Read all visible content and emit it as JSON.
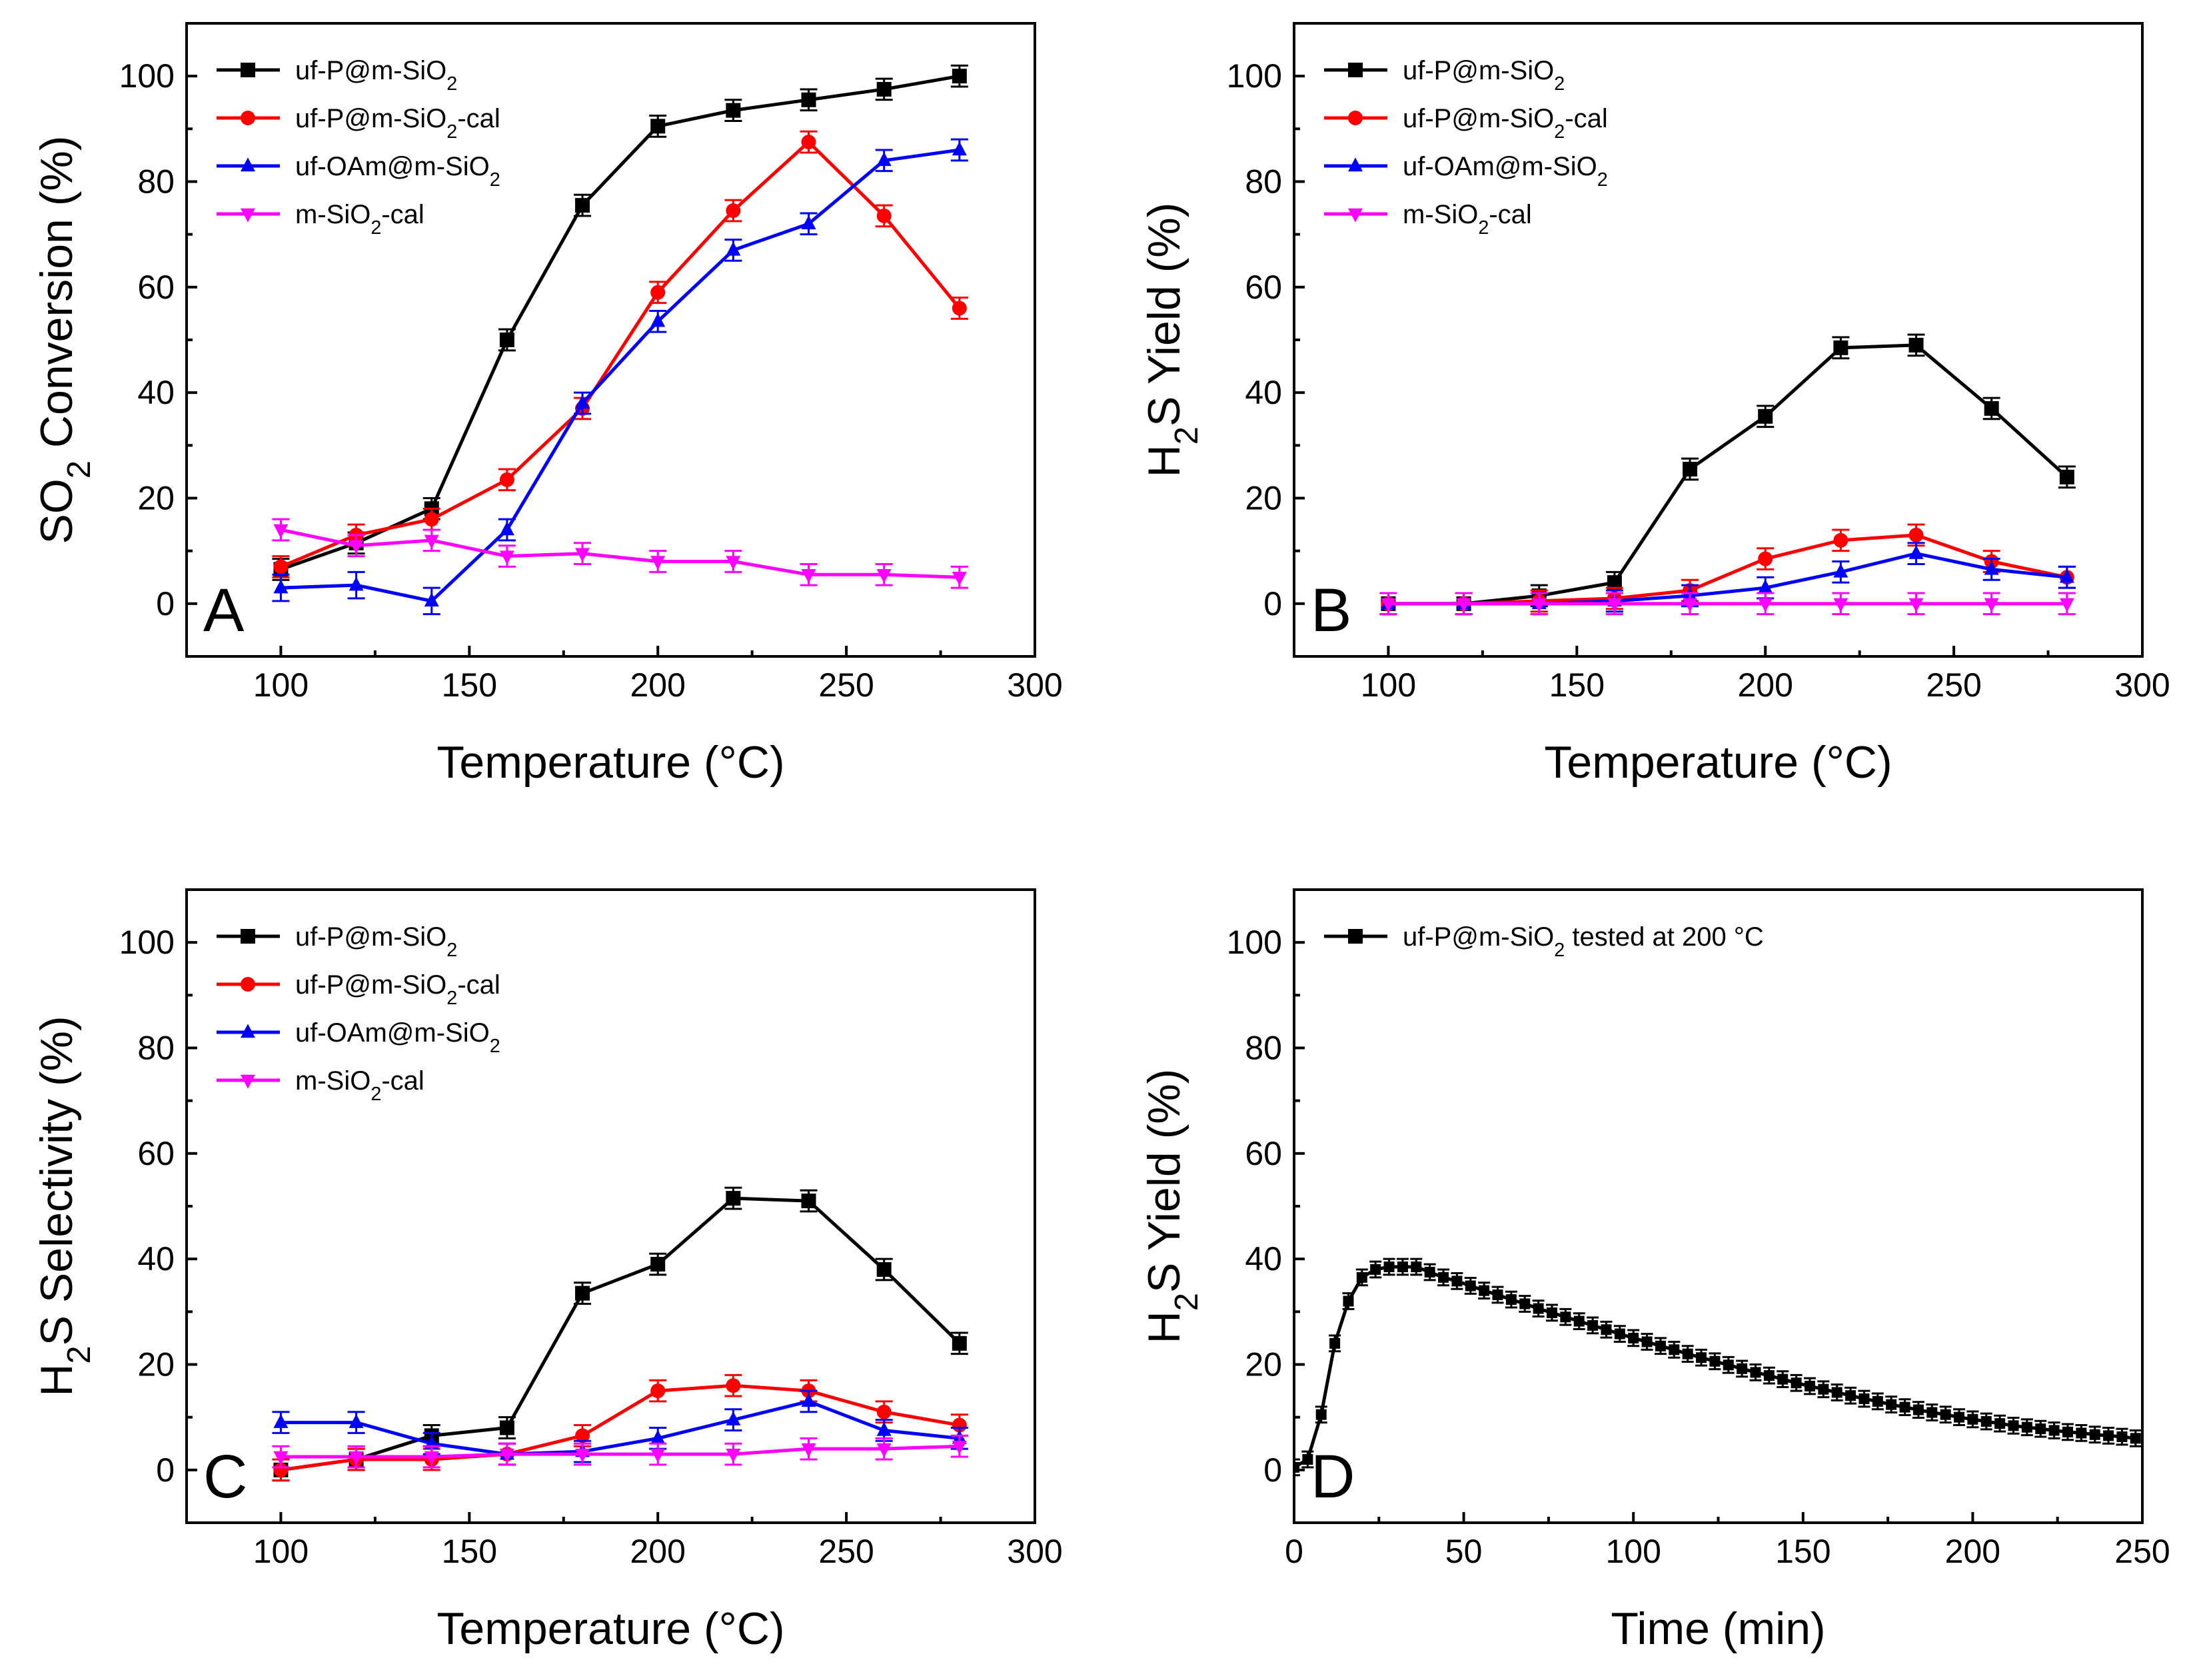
{
  "figure": "Four-panel SO2 reduction performance figure",
  "chart_data": [
    {
      "id": "panel-a",
      "type": "line",
      "panel_label": "A",
      "xlabel": "Temperature (°C)",
      "ylabel": "SO2 Conversion (%)",
      "xlim": [
        75,
        300
      ],
      "ylim": [
        -10,
        110
      ],
      "xticks": [
        100,
        150,
        200,
        250,
        300
      ],
      "yticks": [
        0,
        20,
        40,
        60,
        80,
        100
      ],
      "legend_position": "top-left",
      "x": [
        100,
        120,
        140,
        160,
        180,
        200,
        220,
        240,
        260,
        280
      ],
      "series": [
        {
          "name": "uf-P@m-SiO2",
          "color": "#000000",
          "marker": "square",
          "values": [
            6.5,
            11.5,
            18,
            50,
            75.5,
            90.5,
            93.5,
            95.5,
            97.5,
            100
          ],
          "errors": [
            2,
            2,
            2,
            2,
            2,
            2,
            2,
            2,
            2,
            2
          ]
        },
        {
          "name": "uf-P@m-SiO2-cal",
          "color": "#ff0000",
          "marker": "circle",
          "values": [
            7,
            13,
            16,
            23.5,
            37,
            59,
            74.5,
            87.5,
            73.5,
            56
          ],
          "errors": [
            2,
            2,
            2,
            2,
            2,
            2,
            2,
            2,
            2,
            2
          ]
        },
        {
          "name": "uf-OAm@m-SiO2",
          "color": "#0000ff",
          "marker": "triangle-up",
          "values": [
            3,
            3.5,
            0.5,
            14,
            38,
            53.5,
            67,
            72,
            84,
            86
          ],
          "errors": [
            2.5,
            2.5,
            2.5,
            2,
            2,
            2,
            2,
            2,
            2,
            2
          ]
        },
        {
          "name": "m-SiO2-cal",
          "color": "#ff00ff",
          "marker": "triangle-down",
          "values": [
            14,
            11,
            12,
            9,
            9.5,
            8,
            8,
            5.5,
            5.5,
            5
          ],
          "errors": [
            2,
            2,
            2,
            2,
            2,
            2,
            2,
            2,
            2,
            2
          ]
        }
      ]
    },
    {
      "id": "panel-b",
      "type": "line",
      "panel_label": "B",
      "xlabel": "Temperature (°C)",
      "ylabel": "H2S Yield (%)",
      "xlim": [
        75,
        300
      ],
      "ylim": [
        -10,
        110
      ],
      "xticks": [
        100,
        150,
        200,
        250,
        300
      ],
      "yticks": [
        0,
        20,
        40,
        60,
        80,
        100
      ],
      "legend_position": "top-left",
      "x": [
        100,
        120,
        140,
        160,
        180,
        200,
        220,
        240,
        260,
        280
      ],
      "series": [
        {
          "name": "uf-P@m-SiO2",
          "color": "#000000",
          "marker": "square",
          "values": [
            0,
            0,
            1.5,
            4,
            25.5,
            35.5,
            48.5,
            49,
            37,
            24
          ],
          "errors": [
            2,
            2,
            2,
            2,
            2,
            2,
            2,
            2,
            2,
            2
          ]
        },
        {
          "name": "uf-P@m-SiO2-cal",
          "color": "#ff0000",
          "marker": "circle",
          "values": [
            0,
            0,
            0.5,
            1,
            2.5,
            8.5,
            12,
            13,
            8,
            5
          ],
          "errors": [
            2,
            2,
            2,
            2,
            2,
            2,
            2,
            2,
            2,
            2
          ]
        },
        {
          "name": "uf-OAm@m-SiO2",
          "color": "#0000ff",
          "marker": "triangle-up",
          "values": [
            0,
            0,
            0,
            0.5,
            1.5,
            3,
            6,
            9.5,
            6.5,
            5
          ],
          "errors": [
            2,
            2,
            2,
            2,
            2,
            2,
            2,
            2,
            2,
            2
          ]
        },
        {
          "name": "m-SiO2-cal",
          "color": "#ff00ff",
          "marker": "triangle-down",
          "values": [
            0,
            0,
            0,
            0,
            0,
            0,
            0,
            0,
            0,
            0
          ],
          "errors": [
            2,
            2,
            2,
            2,
            2,
            2,
            2,
            2,
            2,
            2
          ]
        }
      ]
    },
    {
      "id": "panel-c",
      "type": "line",
      "panel_label": "C",
      "xlabel": "Temperature (°C)",
      "ylabel": "H2S Selectivity (%)",
      "xlim": [
        75,
        300
      ],
      "ylim": [
        -10,
        110
      ],
      "xticks": [
        100,
        150,
        200,
        250,
        300
      ],
      "yticks": [
        0,
        20,
        40,
        60,
        80,
        100
      ],
      "legend_position": "top-left",
      "x": [
        100,
        120,
        140,
        160,
        180,
        200,
        220,
        240,
        260,
        280
      ],
      "series": [
        {
          "name": "uf-P@m-SiO2",
          "color": "#000000",
          "marker": "square",
          "values": [
            0,
            2,
            6.5,
            8,
            33.5,
            39,
            51.5,
            51,
            38,
            24
          ],
          "errors": [
            2,
            2,
            2,
            2,
            2,
            2,
            2,
            2,
            2,
            2
          ]
        },
        {
          "name": "uf-P@m-SiO2-cal",
          "color": "#ff0000",
          "marker": "circle",
          "values": [
            0,
            2,
            2,
            3,
            6.5,
            15,
            16,
            15,
            11,
            8.5
          ],
          "errors": [
            2,
            2,
            2,
            2,
            2,
            2,
            2,
            2,
            2,
            2
          ]
        },
        {
          "name": "uf-OAm@m-SiO2",
          "color": "#0000ff",
          "marker": "triangle-up",
          "values": [
            9,
            9,
            5,
            3,
            3.5,
            6,
            9.5,
            13,
            7.5,
            6
          ],
          "errors": [
            2,
            2,
            2,
            2,
            2,
            2,
            2,
            2,
            2,
            2
          ]
        },
        {
          "name": "m-SiO2-cal",
          "color": "#ff00ff",
          "marker": "triangle-down",
          "values": [
            2.5,
            2.5,
            2.5,
            3,
            3,
            3,
            3,
            4,
            4,
            4.5
          ],
          "errors": [
            2,
            2,
            2,
            2,
            2,
            2,
            2,
            2,
            2,
            2
          ]
        }
      ]
    },
    {
      "id": "panel-d",
      "type": "line",
      "panel_label": "D",
      "xlabel": "Time (min)",
      "ylabel": "H2S Yield (%)",
      "xlim": [
        0,
        250
      ],
      "ylim": [
        -10,
        110
      ],
      "xticks": [
        0,
        50,
        100,
        150,
        200,
        250
      ],
      "yticks": [
        0,
        20,
        40,
        60,
        80,
        100
      ],
      "legend_position": "top-left",
      "x": [
        0,
        4,
        8,
        12,
        16,
        20,
        24,
        28,
        32,
        36,
        40,
        44,
        48,
        52,
        56,
        60,
        64,
        68,
        72,
        76,
        80,
        84,
        88,
        92,
        96,
        100,
        104,
        108,
        112,
        116,
        120,
        124,
        128,
        132,
        136,
        140,
        144,
        148,
        152,
        156,
        160,
        164,
        168,
        172,
        176,
        180,
        184,
        188,
        192,
        196,
        200,
        204,
        208,
        212,
        216,
        220,
        224,
        228,
        232,
        236,
        240,
        244,
        248
      ],
      "series": [
        {
          "name": "uf-P@m-SiO2 tested at 200 °C",
          "color": "#000000",
          "marker": "square",
          "values": [
            0.5,
            2,
            10.5,
            24,
            32,
            36.5,
            38,
            38.5,
            38.5,
            38.5,
            37.5,
            36.5,
            35.8,
            34.9,
            34,
            33.2,
            32.3,
            31.5,
            30.6,
            29.8,
            29,
            28.2,
            27.4,
            26.6,
            25.8,
            25,
            24.3,
            23.5,
            22.8,
            22,
            21.3,
            20.6,
            19.9,
            19.2,
            18.5,
            17.9,
            17.2,
            16.5,
            15.9,
            15.3,
            14.7,
            14.1,
            13.5,
            13,
            12.4,
            11.9,
            11.4,
            10.9,
            10.5,
            10,
            9.6,
            9.2,
            8.8,
            8.4,
            8.1,
            7.8,
            7.5,
            7.2,
            7,
            6.7,
            6.5,
            6.3,
            6
          ],
          "errors": [
            1.5,
            1.5,
            1.5,
            1.5,
            1.5,
            1.5,
            1.5,
            1.5,
            1.5,
            1.5,
            1.5,
            1.5,
            1.5,
            1.5,
            1.5,
            1.5,
            1.5,
            1.5,
            1.5,
            1.5,
            1.5,
            1.5,
            1.5,
            1.5,
            1.5,
            1.5,
            1.5,
            1.5,
            1.5,
            1.5,
            1.5,
            1.5,
            1.5,
            1.5,
            1.5,
            1.5,
            1.5,
            1.5,
            1.5,
            1.5,
            1.5,
            1.5,
            1.5,
            1.5,
            1.5,
            1.5,
            1.5,
            1.5,
            1.5,
            1.5,
            1.5,
            1.5,
            1.5,
            1.5,
            1.5,
            1.5,
            1.5,
            1.5,
            1.5,
            1.5,
            1.5,
            1.5,
            1.5
          ]
        }
      ]
    }
  ]
}
